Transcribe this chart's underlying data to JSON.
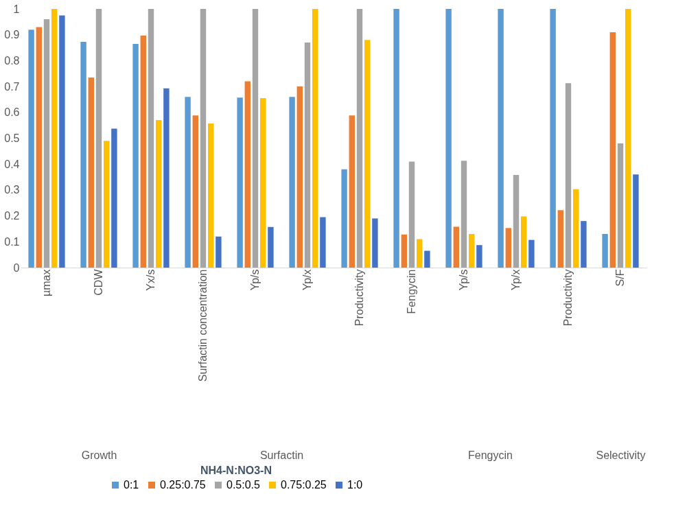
{
  "chart_data": [
    {
      "type": "bar",
      "xlabel": "Growth",
      "categories": [
        "µmax",
        "CDW",
        "Yx/s"
      ],
      "ylim": [
        0,
        1
      ],
      "yticks": [
        0,
        0.1,
        0.2,
        0.3,
        0.4,
        0.5,
        0.6,
        0.7,
        0.8,
        0.9,
        1
      ],
      "grid": false,
      "legend": "bottom",
      "legend_title": "NH4-N:NO3-N",
      "series": [
        {
          "name": "0:1",
          "color": "#5b9bd5",
          "values": [
            0.92,
            0.873,
            0.865
          ]
        },
        {
          "name": "0.25:0.75",
          "color": "#ed7d31",
          "values": [
            0.93,
            0.735,
            0.897
          ]
        },
        {
          "name": "0.5:0.5",
          "color": "#a5a5a5",
          "values": [
            0.96,
            1.0,
            1.0
          ]
        },
        {
          "name": "0.75:0.25",
          "color": "#ffc000",
          "values": [
            1.0,
            0.49,
            0.57
          ]
        },
        {
          "name": "1:0",
          "color": "#4472c4",
          "values": [
            0.975,
            0.537,
            0.693
          ]
        }
      ]
    },
    {
      "type": "bar",
      "xlabel": "Surfactin",
      "categories": [
        "Surfactin concentration",
        "Yp/s",
        "Yp/x",
        "Productivity"
      ],
      "ylim": [
        0,
        1
      ],
      "tick_labels": "x",
      "grid": false,
      "series": [
        {
          "name": "0:1",
          "color": "#5b9bd5",
          "values": [
            0.66,
            0.657,
            0.66,
            0.38
          ]
        },
        {
          "name": "0.25:0.75",
          "color": "#ed7d31",
          "values": [
            0.588,
            0.72,
            0.7,
            0.588
          ]
        },
        {
          "name": "0.5:0.5",
          "color": "#a5a5a5",
          "values": [
            1.0,
            1.0,
            0.87,
            1.0
          ]
        },
        {
          "name": "0.75:0.25",
          "color": "#ffc000",
          "values": [
            0.557,
            0.655,
            1.0,
            0.88
          ]
        },
        {
          "name": "1:0",
          "color": "#4472c4",
          "values": [
            0.12,
            0.157,
            0.195,
            0.19
          ]
        }
      ]
    },
    {
      "type": "bar",
      "xlabel": "Fengycin",
      "categories": [
        "Fengycin",
        "Yp/s",
        "Yp/x",
        "Productivity"
      ],
      "ylim": [
        0,
        1
      ],
      "tick_labels": "x",
      "grid": false,
      "series": [
        {
          "name": "0:1",
          "color": "#5b9bd5",
          "values": [
            1.0,
            1.0,
            1.0,
            1.0
          ]
        },
        {
          "name": "0.25:0.75",
          "color": "#ed7d31",
          "values": [
            0.128,
            0.158,
            0.153,
            0.222
          ]
        },
        {
          "name": "0.5:0.5",
          "color": "#a5a5a5",
          "values": [
            0.41,
            0.413,
            0.358,
            0.713
          ]
        },
        {
          "name": "0.75:0.25",
          "color": "#ffc000",
          "values": [
            0.11,
            0.13,
            0.198,
            0.303
          ]
        },
        {
          "name": "1:0",
          "color": "#4472c4",
          "values": [
            0.065,
            0.087,
            0.107,
            0.18
          ]
        }
      ]
    },
    {
      "type": "bar",
      "xlabel": "Selectivity",
      "categories": [
        "S/F"
      ],
      "ylim": [
        0,
        1
      ],
      "tick_labels": "x",
      "grid": false,
      "series": [
        {
          "name": "0:1",
          "color": "#5b9bd5",
          "values": [
            0.13
          ]
        },
        {
          "name": "0.25:0.75",
          "color": "#ed7d31",
          "values": [
            0.91
          ]
        },
        {
          "name": "0.5:0.5",
          "color": "#a5a5a5",
          "values": [
            0.48
          ]
        },
        {
          "name": "0.75:0.25",
          "color": "#ffc000",
          "values": [
            1.0
          ]
        },
        {
          "name": "1:0",
          "color": "#4472c4",
          "values": [
            0.36
          ]
        }
      ]
    }
  ]
}
